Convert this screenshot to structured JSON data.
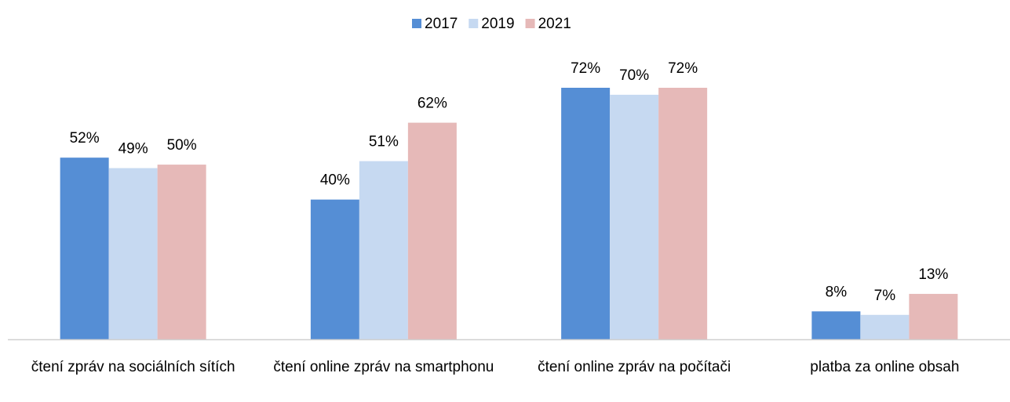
{
  "chart_data": {
    "type": "bar",
    "categories": [
      "čtení zpráv na sociálních sítích",
      "čtení online zpráv na smartphonu",
      "čtení online zpráv na počítači",
      "platba za online obsah"
    ],
    "series": [
      {
        "name": "2017",
        "color": "#558ed5",
        "values": [
          52,
          40,
          72,
          8
        ],
        "value_labels": [
          "52%",
          "40%",
          "72%",
          "8%"
        ]
      },
      {
        "name": "2019",
        "color": "#c6d9f1",
        "values": [
          49,
          51,
          70,
          7
        ],
        "value_labels": [
          "49%",
          "51%",
          "70%",
          "7%"
        ]
      },
      {
        "name": "2021",
        "color": "#e6b9b8",
        "values": [
          50,
          62,
          72,
          13
        ],
        "value_labels": [
          "50%",
          "62%",
          "72%",
          "13%"
        ]
      }
    ],
    "legend": "top"
  }
}
